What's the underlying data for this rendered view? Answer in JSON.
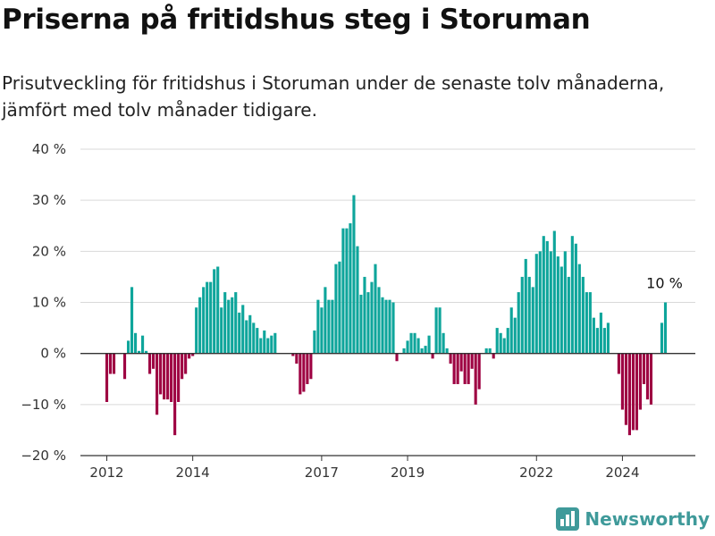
{
  "title": "Priserna på fritidshus steg i Storuman",
  "subtitle": "Prisutveckling för fritidshus i Storuman under de senaste tolv månaderna, jämfört med tolv månader tidigare.",
  "brand": {
    "name": "Newsworthy",
    "icon": "bar-chart-logo-icon"
  },
  "colors": {
    "positive": "#0ea59b",
    "negative": "#9e0142",
    "grid": "#d9d9d9",
    "axis": "#333333"
  },
  "chart_data": {
    "type": "bar",
    "x_unit": "month",
    "start_month": "2012-01",
    "ylim": [
      -20,
      40
    ],
    "yticks": [
      -20,
      -10,
      0,
      10,
      20,
      30,
      40
    ],
    "ytick_labels": [
      "−20 %",
      "−10 %",
      "0 %",
      "10 %",
      "20 %",
      "30 %",
      "40 %"
    ],
    "xticks": [
      {
        "month": "2012-01",
        "label": "2012"
      },
      {
        "month": "2014-01",
        "label": "2014"
      },
      {
        "month": "2017-01",
        "label": "2017"
      },
      {
        "month": "2019-01",
        "label": "2019"
      },
      {
        "month": "2022-01",
        "label": "2022"
      },
      {
        "month": "2024-01",
        "label": "2024"
      }
    ],
    "grid": true,
    "annotation": {
      "label": "10 %",
      "month": "2025-01",
      "value": 10
    },
    "values": [
      -9.5,
      -4,
      -4,
      null,
      null,
      -5,
      2.5,
      13,
      4,
      0.5,
      3.5,
      0.5,
      -4,
      -3,
      -12,
      -8,
      -9,
      -9,
      -9.5,
      -16,
      -9.5,
      -5,
      -4,
      -1,
      -0.5,
      9,
      11,
      13,
      14,
      14,
      16.5,
      17,
      9,
      12,
      10.5,
      11,
      12,
      8,
      9.5,
      6.5,
      7.5,
      6,
      5,
      3,
      4.5,
      3,
      3.5,
      4,
      null,
      null,
      null,
      null,
      -0.5,
      -2,
      -8,
      -7.5,
      -6,
      -5,
      4.5,
      10.5,
      9,
      13,
      10.5,
      10.5,
      17.5,
      18,
      24.5,
      24.5,
      25.5,
      31,
      21,
      11.5,
      15,
      12,
      14,
      17.5,
      13,
      11,
      10.5,
      10.5,
      10,
      -1.5,
      null,
      1,
      2.5,
      4,
      4,
      3,
      1,
      1.5,
      3.5,
      -1,
      9,
      9,
      4,
      1,
      -2,
      -6,
      -6,
      -3.5,
      -6,
      -6,
      -3,
      -10,
      -7,
      null,
      1,
      1,
      -1,
      5,
      4,
      3,
      5,
      9,
      7,
      12,
      15,
      18.5,
      15,
      13,
      19.5,
      20,
      23,
      22,
      20,
      24,
      19,
      17,
      20,
      15,
      23,
      21.5,
      17.5,
      15,
      12,
      12,
      7,
      5,
      8,
      5,
      6,
      null,
      null,
      -4,
      -11,
      -14,
      -16,
      -15,
      -15,
      -11,
      -6,
      -9,
      -10,
      null,
      null,
      6,
      10
    ]
  }
}
